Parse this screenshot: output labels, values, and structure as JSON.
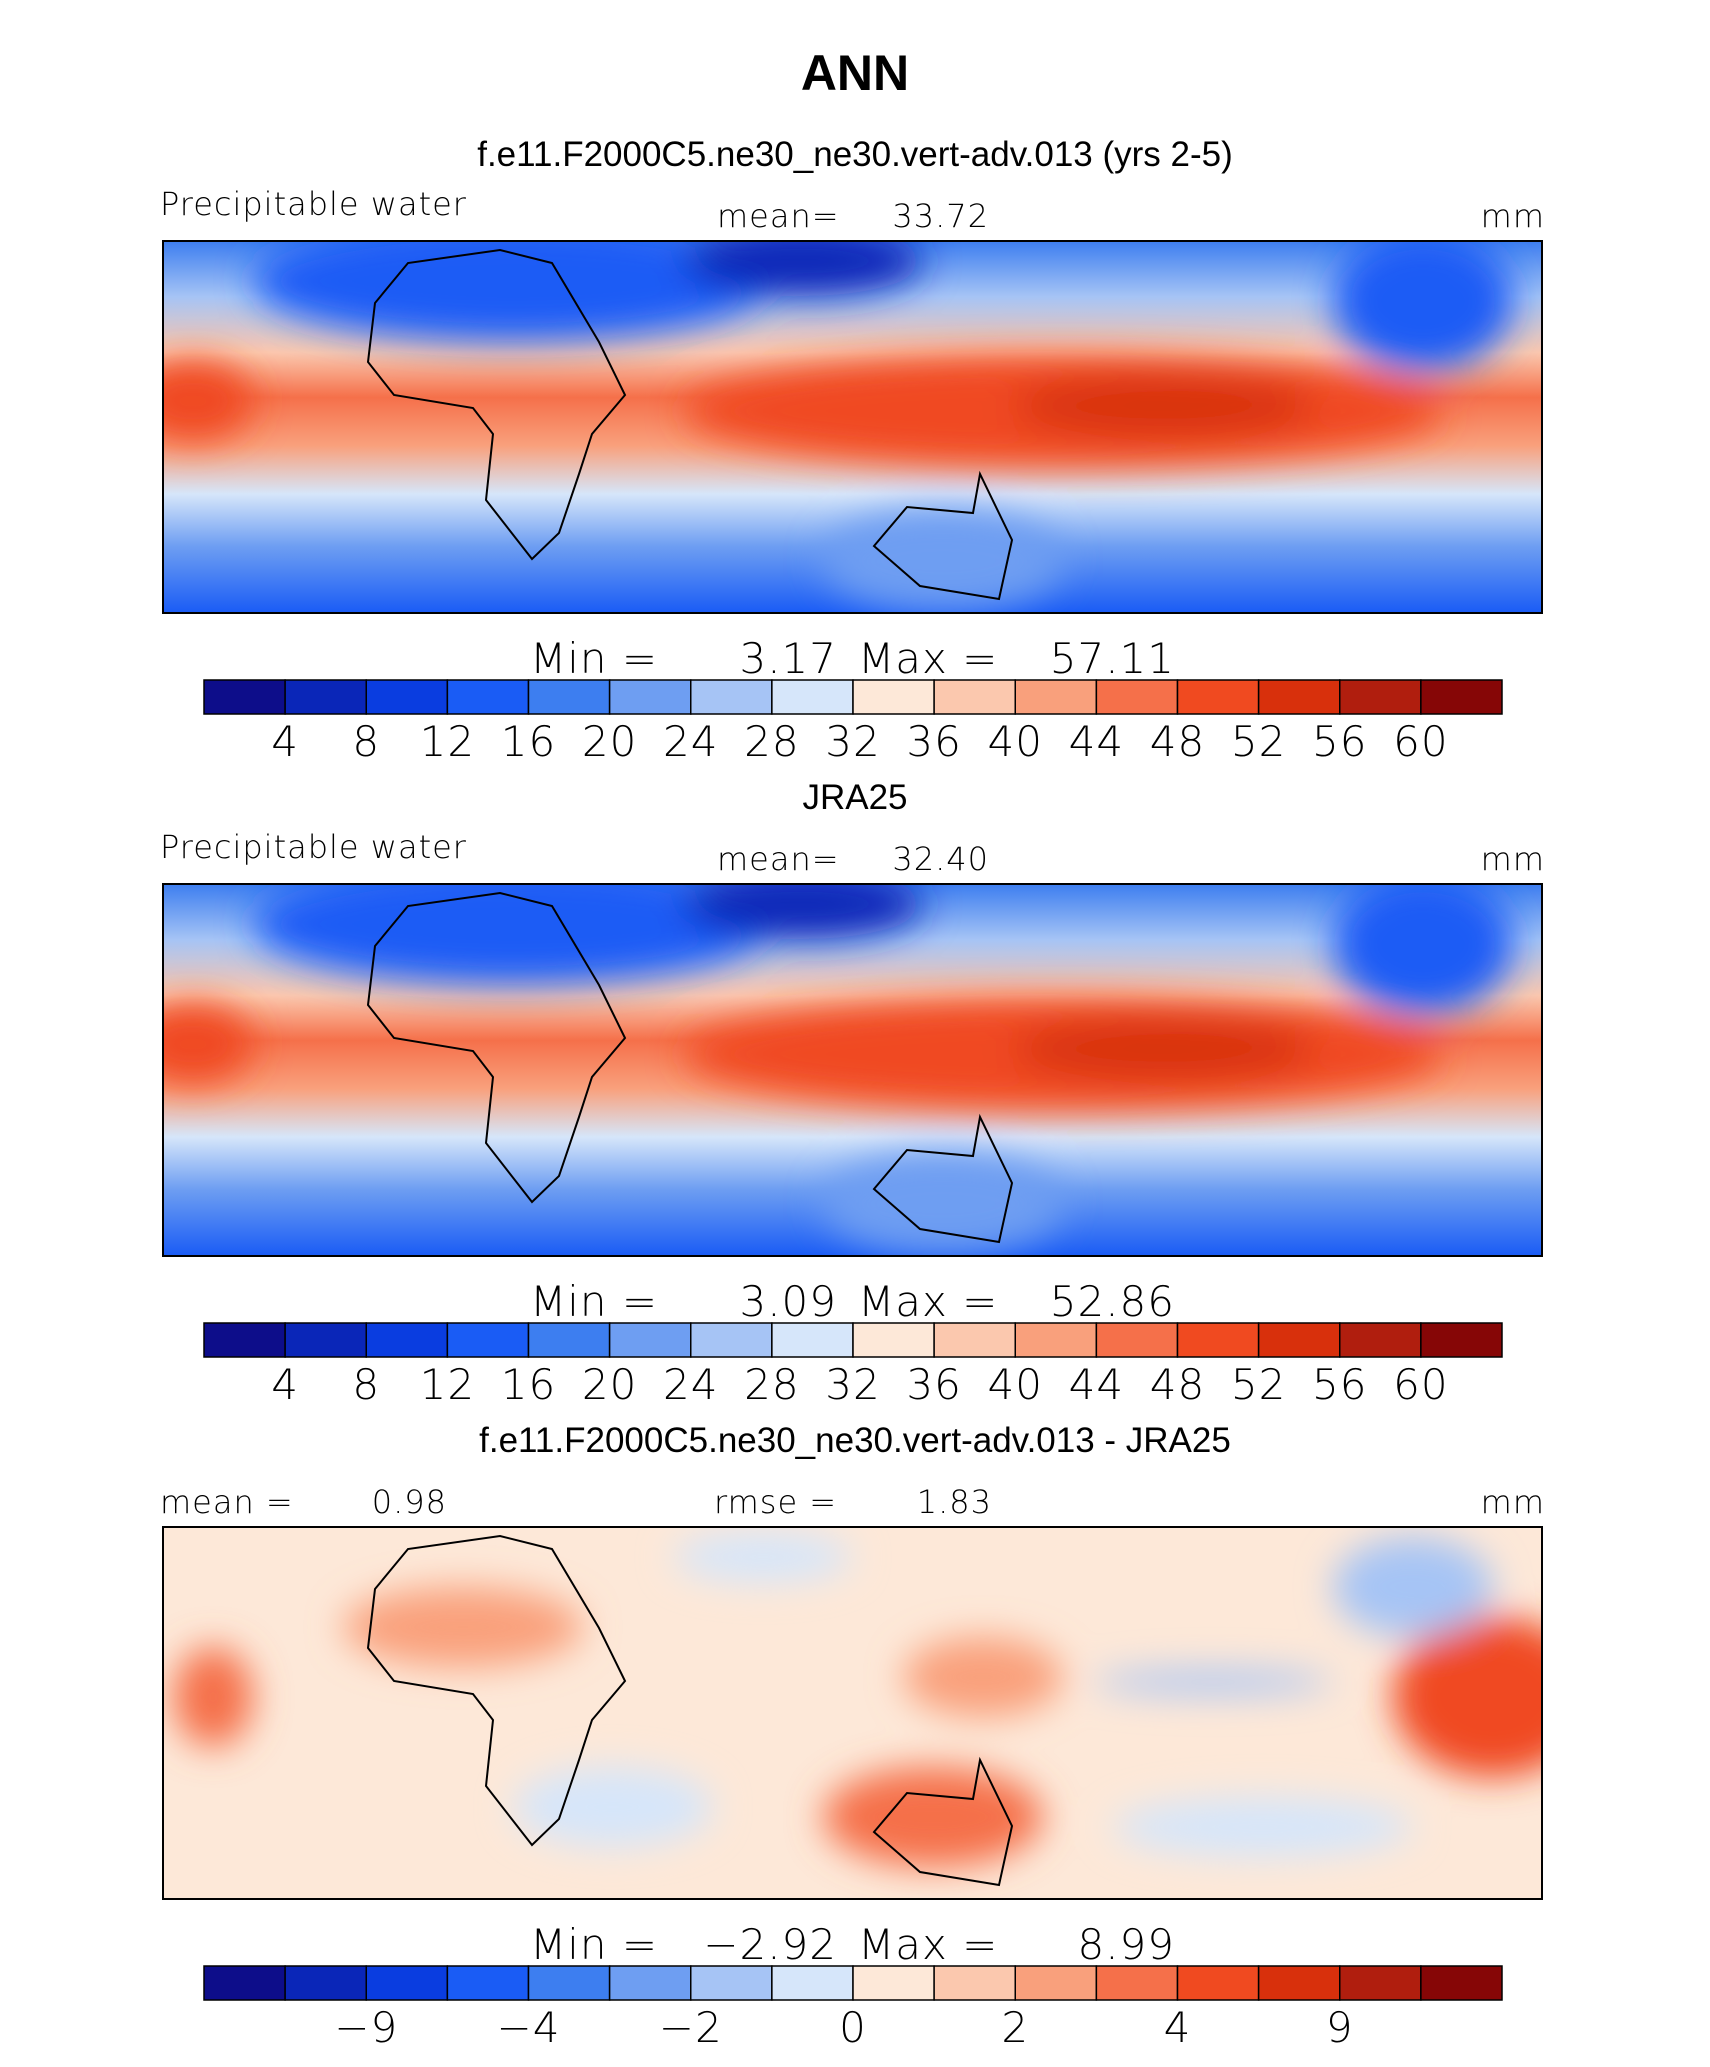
{
  "title": "ANN",
  "colorbar_colors": [
    "#0d0d8a",
    "#0a26b8",
    "#0a3de0",
    "#1a5cf5",
    "#3d7ef0",
    "#6e9ef2",
    "#a6c4f5",
    "#d6e6fa",
    "#fde8d8",
    "#fbc8ae",
    "#f9a07c",
    "#f5704a",
    "#f04a20",
    "#d8300c",
    "#b01e0e",
    "#860606"
  ],
  "panels": [
    {
      "title": "f.e11.F2000C5.ne30_ne30.vert-adv.013 (yrs 2-5)",
      "name": "Precipitable water",
      "stats": [
        {
          "label": "mean=",
          "value": "33.72"
        }
      ],
      "units": "mm",
      "min_label": "Min =",
      "min": "3.17",
      "max_label": "Max =",
      "max": "57.11",
      "colorbar_labels": [
        4,
        8,
        12,
        16,
        20,
        24,
        28,
        32,
        36,
        40,
        44,
        48,
        52,
        56,
        60
      ]
    },
    {
      "title": "JRA25",
      "name": "Precipitable water",
      "stats": [
        {
          "label": "mean=",
          "value": "32.40"
        }
      ],
      "units": "mm",
      "min_label": "Min =",
      "min": "3.09",
      "max_label": "Max =",
      "max": "52.86",
      "colorbar_labels": [
        4,
        8,
        12,
        16,
        20,
        24,
        28,
        32,
        36,
        40,
        44,
        48,
        52,
        56,
        60
      ]
    },
    {
      "title": "f.e11.F2000C5.ne30_ne30.vert-adv.013 - JRA25",
      "stats": [
        {
          "label": "mean =",
          "value": "0.98"
        },
        {
          "label": "rmse =",
          "value": "1.83"
        }
      ],
      "units": "mm",
      "min_label": "Min =",
      "min": "−2.92",
      "max_label": "Max =",
      "max": "8.99",
      "colorbar_labels": [
        "−9",
        "−4",
        "−2",
        "0",
        "2",
        "4",
        "9"
      ]
    }
  ]
}
